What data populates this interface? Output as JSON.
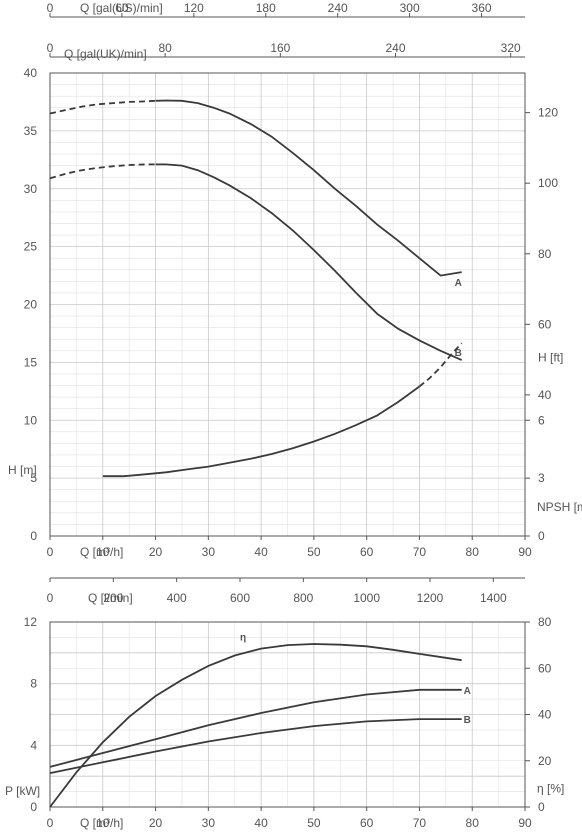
{
  "chart_data": [
    {
      "type": "line",
      "title": "",
      "top_axes": [
        {
          "label": "Q [gal(US)/min]",
          "ticks": [
            "0",
            "60",
            "120",
            "180",
            "240",
            "300",
            "360"
          ],
          "values": [
            0,
            60,
            120,
            180,
            240,
            300,
            360
          ]
        },
        {
          "label": "Q [gal(UK)/min]",
          "ticks": [
            "0",
            "80",
            "160",
            "240",
            "320"
          ],
          "values": [
            0,
            80,
            160,
            240,
            320
          ]
        }
      ],
      "xlabel": "Q [m³/h]",
      "xlim": [
        0,
        90
      ],
      "x_ticks": [
        "0",
        "10",
        "20",
        "30",
        "40",
        "50",
        "60",
        "70",
        "80",
        "90"
      ],
      "ylabel": "H [m]",
      "ylim": [
        0,
        40
      ],
      "y_ticks": [
        "0",
        "5",
        "10",
        "15",
        "20",
        "25",
        "30",
        "35",
        "40"
      ],
      "right_axis_h": {
        "label": "H [ft]",
        "ticks": [
          "40",
          "60",
          "80",
          "100",
          "120"
        ]
      },
      "right_axis_npsh": {
        "label": "NPSH [m]",
        "ticks": [
          "0",
          "3",
          "6"
        ]
      },
      "grid": true,
      "series": [
        {
          "name": "A",
          "dashed_x": [
            0,
            3,
            6,
            9,
            12,
            15,
            18,
            20
          ],
          "dashed_y": [
            36.5,
            36.8,
            37.1,
            37.3,
            37.4,
            37.5,
            37.55,
            37.6
          ],
          "x": [
            20,
            22,
            25,
            28,
            31,
            34,
            38,
            42,
            46,
            50,
            54,
            58,
            62,
            66,
            70,
            74,
            78
          ],
          "y": [
            37.6,
            37.62,
            37.6,
            37.4,
            37.0,
            36.5,
            35.6,
            34.5,
            33.1,
            31.6,
            30.0,
            28.5,
            26.9,
            25.5,
            24.0,
            22.5,
            22.8
          ]
        },
        {
          "name": "B",
          "dashed_x": [
            0,
            3,
            6,
            9,
            12,
            15,
            18,
            20
          ],
          "dashed_y": [
            30.9,
            31.3,
            31.6,
            31.8,
            31.95,
            32.05,
            32.1,
            32.1
          ],
          "x": [
            20,
            22,
            25,
            28,
            31,
            34,
            38,
            42,
            46,
            50,
            54,
            58,
            62,
            66,
            70,
            74,
            78
          ],
          "y": [
            32.1,
            32.1,
            32.0,
            31.6,
            31.0,
            30.3,
            29.2,
            27.9,
            26.4,
            24.7,
            22.9,
            21.0,
            19.2,
            17.9,
            16.9,
            16.0,
            15.2
          ]
        },
        {
          "name": "NPSH",
          "x": [
            10,
            14,
            18,
            22,
            26,
            30,
            34,
            38,
            42,
            46,
            50,
            54,
            58,
            62,
            66,
            70
          ],
          "y": [
            3.1,
            3.1,
            3.2,
            3.3,
            3.45,
            3.6,
            3.8,
            4.0,
            4.25,
            4.55,
            4.9,
            5.3,
            5.75,
            6.25,
            6.95,
            7.75
          ],
          "dashed_x": [
            70,
            72,
            74,
            76,
            78
          ],
          "dashed_y": [
            7.75,
            8.2,
            8.75,
            9.4,
            10.0
          ]
        }
      ]
    },
    {
      "type": "line",
      "title": "",
      "top_axis": {
        "label": "Q [l/min]",
        "ticks": [
          "0",
          "200",
          "400",
          "600",
          "800",
          "1000",
          "1200",
          "1400"
        ],
        "values": [
          0,
          200,
          400,
          600,
          800,
          1000,
          1200,
          1400
        ]
      },
      "xlabel": "Q [m³/h]",
      "xlim": [
        0,
        90
      ],
      "x_ticks": [
        "0",
        "10",
        "20",
        "30",
        "40",
        "50",
        "60",
        "70",
        "80",
        "90"
      ],
      "ylabel": "P [kW]",
      "ylim": [
        0,
        12
      ],
      "y_ticks": [
        "0",
        "4",
        "8",
        "12"
      ],
      "right_axis": {
        "label": "η [%]",
        "ticks": [
          "0",
          "20",
          "40",
          "60",
          "80"
        ],
        "ylim": [
          0,
          80
        ]
      },
      "grid": true,
      "series": [
        {
          "name": "η",
          "axis": "right",
          "x": [
            0,
            5,
            10,
            15,
            20,
            25,
            30,
            35,
            40,
            45,
            50,
            55,
            60,
            65,
            70,
            75,
            78
          ],
          "y": [
            0,
            15,
            28,
            39,
            48,
            55,
            61,
            65.5,
            68.5,
            70,
            70.5,
            70.2,
            69.5,
            68,
            66.2,
            64.5,
            63.5
          ]
        },
        {
          "name": "A",
          "axis": "left",
          "x": [
            0,
            10,
            20,
            30,
            40,
            50,
            60,
            70,
            78
          ],
          "y": [
            2.6,
            3.5,
            4.4,
            5.3,
            6.1,
            6.8,
            7.3,
            7.6,
            7.6
          ]
        },
        {
          "name": "B",
          "axis": "left",
          "x": [
            0,
            10,
            20,
            30,
            40,
            50,
            60,
            70,
            78
          ],
          "y": [
            2.2,
            2.9,
            3.6,
            4.25,
            4.8,
            5.25,
            5.55,
            5.7,
            5.7
          ]
        }
      ]
    }
  ]
}
